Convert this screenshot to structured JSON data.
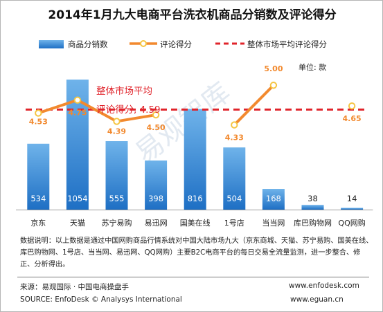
{
  "title": "2014年1月九大电商平台洗衣机商品分销数及评论得分",
  "legend": {
    "bar_label": "商品分销数",
    "line_label": "评论得分",
    "market_label": "整体市场平均评论得分"
  },
  "unit": "单位: 款",
  "annotation": {
    "line1": "整体市场平均",
    "line2": "评论得分, 4.59"
  },
  "watermark": "易观智库",
  "note": "数据说明：以上数据是通过中国网购商品行情系统对中国大陆市场九大（京东商城、天猫、苏宁易购、国美在线、库巴购物网、1号店、当当网、易迅网、QQ网购）主要B2C电商平台的每日交易全流量监测，进一步整合、修正、分析得出。",
  "footer": {
    "source_cn": "来源：易观国际 · 中国电商操盘手",
    "source_en": "SOURCE: EnfoDesk © Analysys International",
    "website1": "www.enfodesk.com",
    "website2": "www.eguan.cn"
  },
  "colors": {
    "bar_top": "#6fb3ea",
    "bar_bottom": "#1e6fc4",
    "line": "#f2892e",
    "market": "#e0242b",
    "score_label": "#f2892e"
  },
  "chart_data": {
    "type": "bar+line",
    "categories": [
      "京东",
      "天猫",
      "苏宁易购",
      "易迅网",
      "国美在线",
      "1号店",
      "当当网",
      "库巴购物网",
      "QQ网购"
    ],
    "series": [
      {
        "name": "商品分销数",
        "type": "bar",
        "values": [
          534,
          1054,
          555,
          398,
          816,
          504,
          168,
          38,
          14
        ]
      },
      {
        "name": "评论得分",
        "type": "line",
        "values": [
          4.53,
          4.75,
          4.39,
          4.5,
          null,
          4.33,
          5.0,
          null,
          4.65
        ],
        "labels": [
          "4.53",
          "4.75",
          "4.39",
          "4.50",
          "",
          "4.33",
          "5.00",
          "",
          "4.65"
        ]
      }
    ],
    "reference_line": {
      "name": "整体市场平均评论得分",
      "value": 4.59
    },
    "bar_ylim": [
      0,
      1200
    ],
    "line_ylim": [
      2.9,
      5.4
    ],
    "grid": false,
    "legend_position": "top"
  }
}
